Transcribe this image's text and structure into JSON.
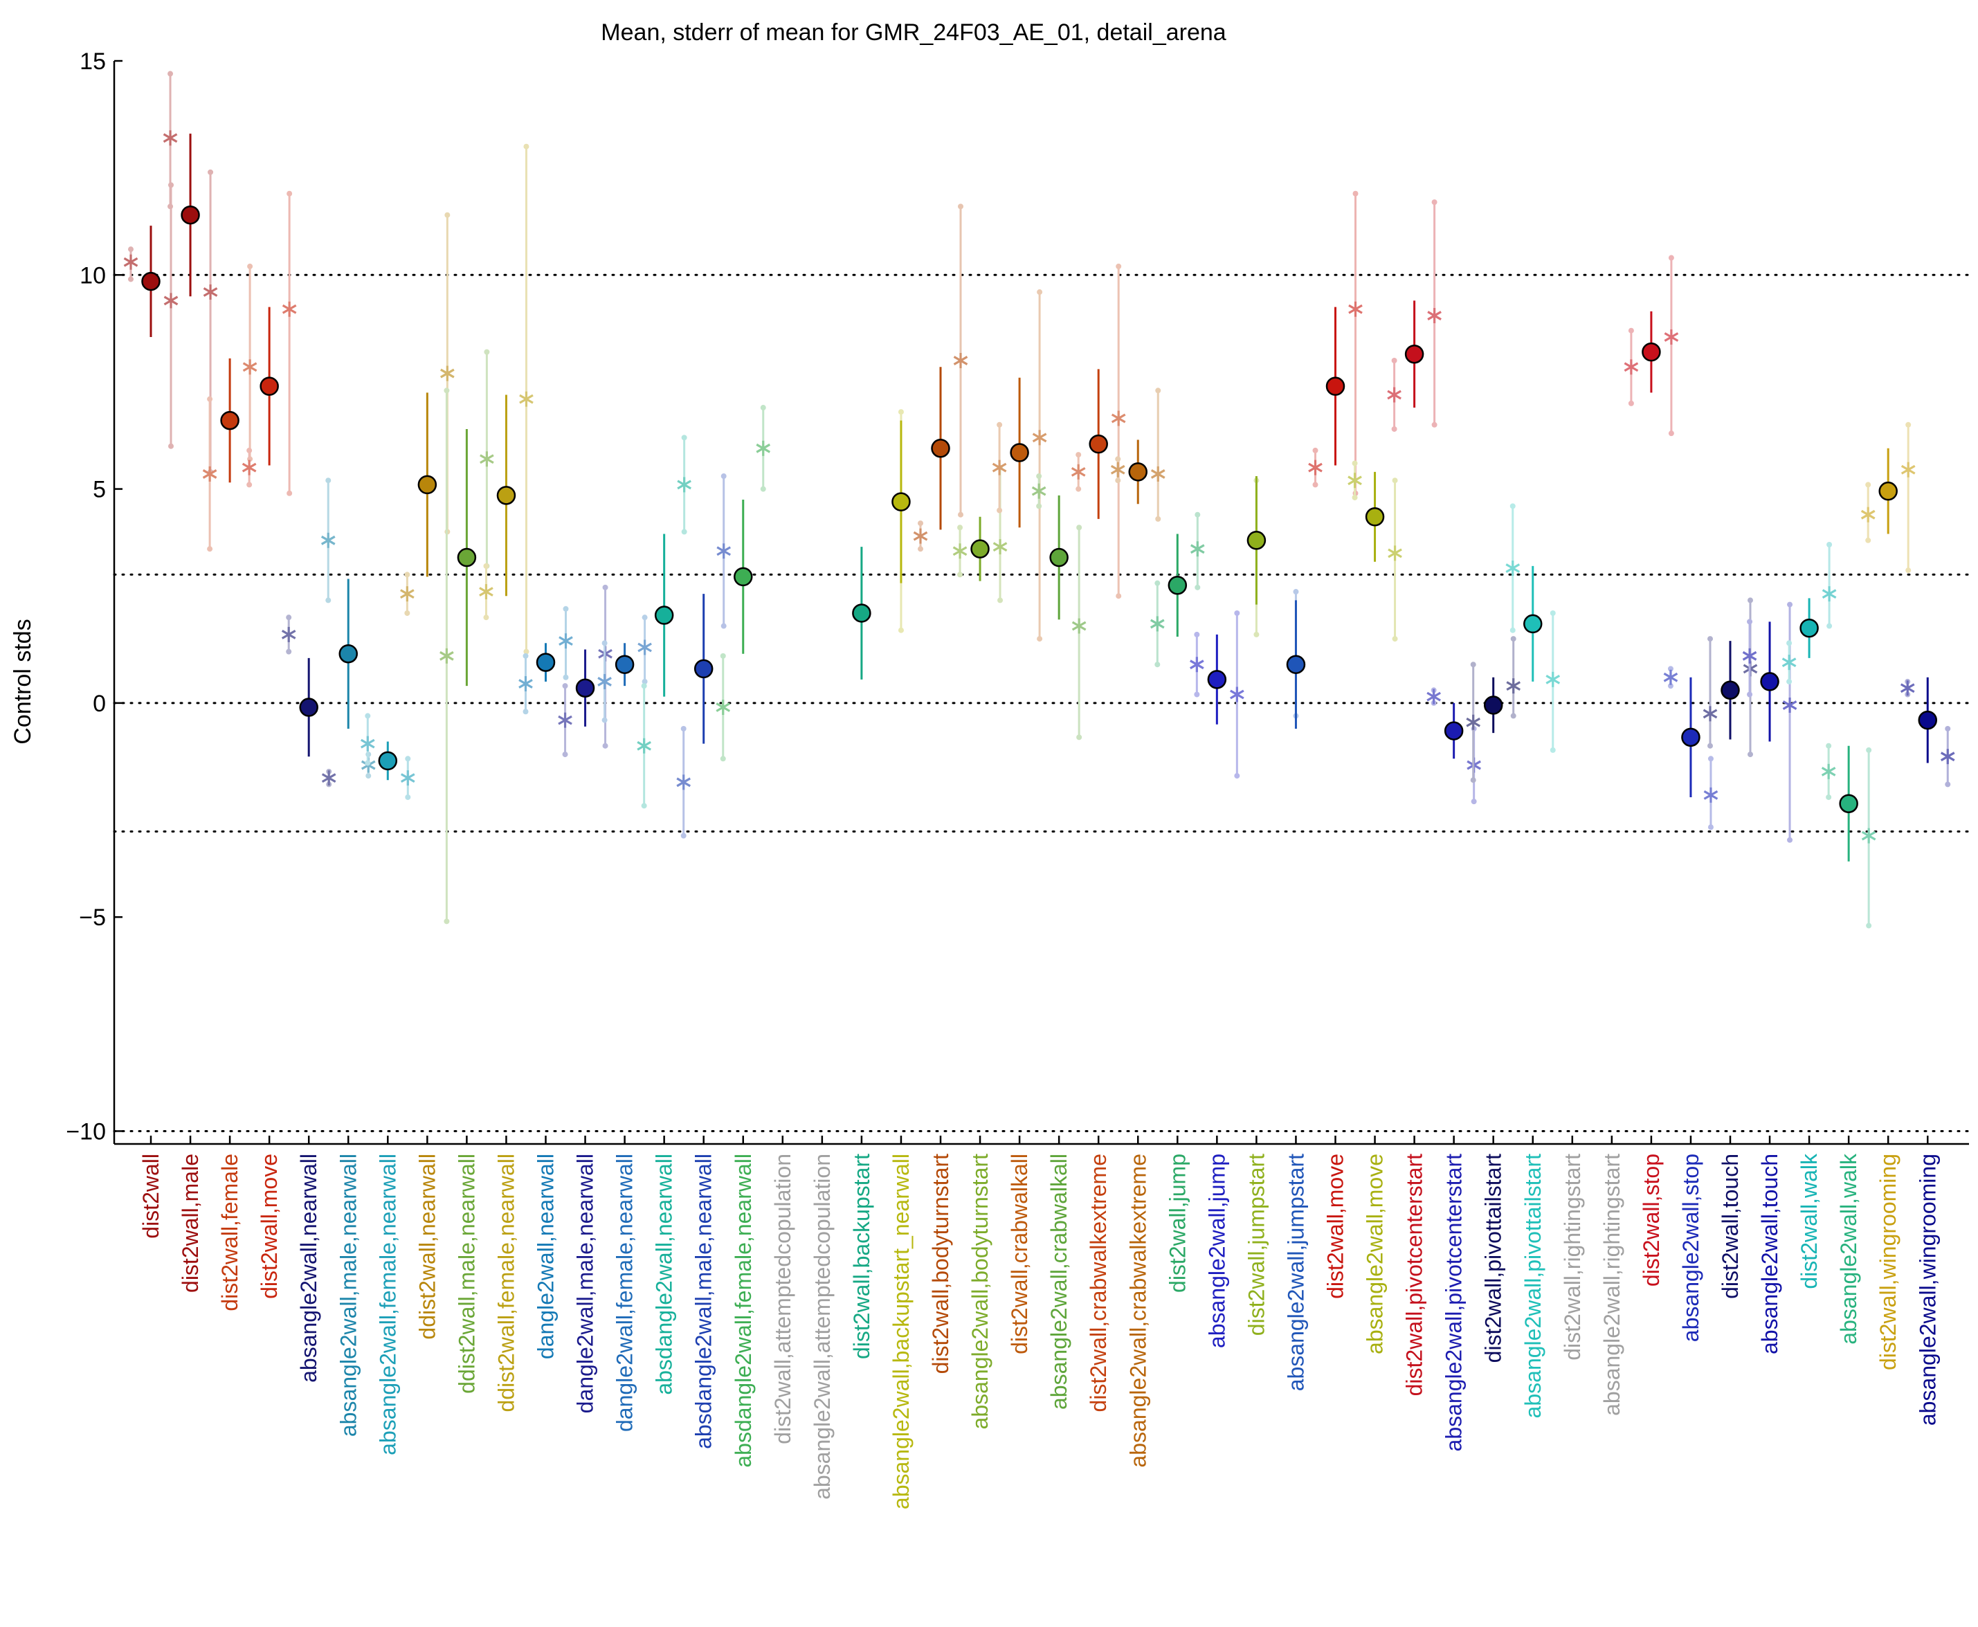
{
  "chart_data": {
    "type": "scatter",
    "title": "Mean, stderr of mean for GMR_24F03_AE_01, detail_arena",
    "ylabel": "Control stds",
    "xlabel": "",
    "ylim": [
      -10.3,
      15
    ],
    "yticks": [
      -10,
      -5,
      0,
      5,
      10,
      15
    ],
    "yticklabels": [
      "−10",
      "−5",
      "0",
      "5",
      "10",
      "15"
    ],
    "reference_lines": [
      -10,
      -3,
      0,
      3,
      10
    ],
    "grid": false,
    "categories": [
      {
        "label": "dist2wall",
        "color": "#9c0e0e",
        "mean": 9.85,
        "sem": 1.3,
        "sub": [
          {
            "v": 10.3,
            "lo": 9.9,
            "hi": 10.6
          },
          {
            "v": 9.4,
            "lo": 6.0,
            "hi": 12.1
          }
        ]
      },
      {
        "label": "dist2wall,male",
        "color": "#9c0e0e",
        "mean": 11.4,
        "sem": 1.9,
        "sub": [
          {
            "v": 13.2,
            "lo": 11.6,
            "hi": 14.7
          },
          {
            "v": 9.6,
            "lo": 5.4,
            "hi": 12.4
          }
        ]
      },
      {
        "label": "dist2wall,female",
        "color": "#c43a0e",
        "mean": 6.6,
        "sem": 1.45,
        "sub": [
          {
            "v": 5.35,
            "lo": 3.6,
            "hi": 7.1
          },
          {
            "v": 7.85,
            "lo": 5.7,
            "hi": 10.2
          }
        ]
      },
      {
        "label": "dist2wall,move",
        "color": "#c8250e",
        "mean": 7.4,
        "sem": 1.85,
        "sub": [
          {
            "v": 5.5,
            "lo": 5.1,
            "hi": 5.9
          },
          {
            "v": 9.2,
            "lo": 4.9,
            "hi": 11.9
          }
        ]
      },
      {
        "label": "absangle2wall,nearwall",
        "color": "#141470",
        "mean": -0.1,
        "sem": 1.15,
        "sub": [
          {
            "v": 1.6,
            "lo": 1.2,
            "hi": 2.0
          },
          {
            "v": -1.75,
            "lo": -1.9,
            "hi": -1.6
          }
        ]
      },
      {
        "label": "absangle2wall,male,nearwall",
        "color": "#1c85aa",
        "mean": 1.15,
        "sem": 1.75,
        "sub": [
          {
            "v": 3.8,
            "lo": 2.4,
            "hi": 5.2
          },
          {
            "v": -1.45,
            "lo": -1.7,
            "hi": -1.2
          }
        ]
      },
      {
        "label": "absangle2wall,female,nearwall",
        "color": "#1c9fb7",
        "mean": -1.35,
        "sem": 0.45,
        "sub": [
          {
            "v": -0.95,
            "lo": -1.4,
            "hi": -0.3
          },
          {
            "v": -1.75,
            "lo": -2.2,
            "hi": -1.3
          }
        ]
      },
      {
        "label": "ddist2wall,nearwall",
        "color": "#b8860b",
        "mean": 5.1,
        "sem": 2.15,
        "sub": [
          {
            "v": 2.55,
            "lo": 2.1,
            "hi": 3.0
          },
          {
            "v": 7.7,
            "lo": 4.0,
            "hi": 11.4
          }
        ]
      },
      {
        "label": "ddist2wall,male,nearwall",
        "color": "#6aa636",
        "mean": 3.4,
        "sem": 3.0,
        "sub": [
          {
            "v": 1.1,
            "lo": -5.1,
            "hi": 7.3
          },
          {
            "v": 5.7,
            "lo": 3.2,
            "hi": 8.2
          }
        ]
      },
      {
        "label": "ddist2wall,female,nearwall",
        "color": "#bba012",
        "mean": 4.85,
        "sem": 2.35,
        "sub": [
          {
            "v": 2.6,
            "lo": 2.0,
            "hi": 3.2
          },
          {
            "v": 7.1,
            "lo": 1.2,
            "hi": 13.0
          }
        ]
      },
      {
        "label": "dangle2wall,nearwall",
        "color": "#1479b5",
        "mean": 0.95,
        "sem": 0.45,
        "sub": [
          {
            "v": 0.45,
            "lo": -0.2,
            "hi": 1.1
          },
          {
            "v": 1.45,
            "lo": 0.6,
            "hi": 2.2
          }
        ]
      },
      {
        "label": "dangle2wall,male,nearwall",
        "color": "#1a1a8c",
        "mean": 0.35,
        "sem": 0.9,
        "sub": [
          {
            "v": -0.4,
            "lo": -1.2,
            "hi": 0.4
          },
          {
            "v": 1.15,
            "lo": -1.0,
            "hi": 2.7
          }
        ]
      },
      {
        "label": "dangle2wall,female,nearwall",
        "color": "#1f6bb8",
        "mean": 0.9,
        "sem": 0.5,
        "sub": [
          {
            "v": 0.5,
            "lo": -0.4,
            "hi": 1.4
          },
          {
            "v": 1.3,
            "lo": 0.5,
            "hi": 2.0
          }
        ]
      },
      {
        "label": "absdangle2wall,nearwall",
        "color": "#16b09a",
        "mean": 2.05,
        "sem": 1.9,
        "sub": [
          {
            "v": -1.0,
            "lo": -2.4,
            "hi": 0.4
          },
          {
            "v": 5.1,
            "lo": 4.0,
            "hi": 6.2
          }
        ]
      },
      {
        "label": "absdangle2wall,male,nearwall",
        "color": "#1d3fb0",
        "mean": 0.8,
        "sem": 1.75,
        "sub": [
          {
            "v": -1.85,
            "lo": -3.1,
            "hi": -0.6
          },
          {
            "v": 3.55,
            "lo": 1.8,
            "hi": 5.3
          }
        ]
      },
      {
        "label": "absdangle2wall,female,nearwall",
        "color": "#3dae53",
        "mean": 2.95,
        "sem": 1.8,
        "sub": [
          {
            "v": -0.1,
            "lo": -1.3,
            "hi": 1.1
          },
          {
            "v": 5.95,
            "lo": 5.0,
            "hi": 6.9
          }
        ]
      },
      {
        "label": "dist2wall,attemptedcopulation",
        "color": "#a0a0a0",
        "mean": null,
        "sem": null,
        "sub": []
      },
      {
        "label": "absangle2wall,attemptedcopulation",
        "color": "#a0a0a0",
        "mean": null,
        "sem": null,
        "sub": []
      },
      {
        "label": "dist2wall,backupstart",
        "color": "#16a884",
        "mean": 2.1,
        "sem": 1.55,
        "sub": []
      },
      {
        "label": "absangle2wall,backupstart_nearwall",
        "color": "#b7b80f",
        "mean": 4.7,
        "sem": 1.9,
        "sub": [
          {
            "v": 4.7,
            "lo": 1.7,
            "hi": 6.8
          }
        ]
      },
      {
        "label": "dist2wall,bodyturnstart",
        "color": "#b44a08",
        "mean": 5.95,
        "sem": 1.9,
        "sub": [
          {
            "v": 3.9,
            "lo": 3.6,
            "hi": 4.2
          },
          {
            "v": 8.0,
            "lo": 4.4,
            "hi": 11.6
          }
        ]
      },
      {
        "label": "absangle2wall,bodyturnstart",
        "color": "#7dab2a",
        "mean": 3.6,
        "sem": 0.75,
        "sub": [
          {
            "v": 3.55,
            "lo": 3.0,
            "hi": 4.1
          },
          {
            "v": 3.65,
            "lo": 2.4,
            "hi": 5.5
          }
        ]
      },
      {
        "label": "dist2wall,crabwalkall",
        "color": "#bd5a0c",
        "mean": 5.85,
        "sem": 1.75,
        "sub": [
          {
            "v": 5.5,
            "lo": 4.5,
            "hi": 6.5
          },
          {
            "v": 6.2,
            "lo": 1.5,
            "hi": 9.6
          }
        ]
      },
      {
        "label": "absangle2wall,crabwalkall",
        "color": "#5ea53a",
        "mean": 3.4,
        "sem": 1.45,
        "sub": [
          {
            "v": 4.95,
            "lo": 4.6,
            "hi": 5.3
          },
          {
            "v": 1.8,
            "lo": -0.8,
            "hi": 4.1
          }
        ]
      },
      {
        "label": "dist2wall,crabwalkextreme",
        "color": "#c4400e",
        "mean": 6.05,
        "sem": 1.75,
        "sub": [
          {
            "v": 5.4,
            "lo": 5.0,
            "hi": 5.8
          },
          {
            "v": 6.65,
            "lo": 2.5,
            "hi": 10.2
          }
        ]
      },
      {
        "label": "absangle2wall,crabwalkextreme",
        "color": "#b8650b",
        "mean": 5.4,
        "sem": 0.75,
        "sub": [
          {
            "v": 5.45,
            "lo": 5.2,
            "hi": 5.7
          },
          {
            "v": 5.35,
            "lo": 4.3,
            "hi": 7.3
          }
        ]
      },
      {
        "label": "dist2wall,jump",
        "color": "#2ba866",
        "mean": 2.75,
        "sem": 1.2,
        "sub": [
          {
            "v": 1.85,
            "lo": 0.9,
            "hi": 2.8
          },
          {
            "v": 3.6,
            "lo": 2.7,
            "hi": 4.4
          }
        ]
      },
      {
        "label": "absangle2wall,jump",
        "color": "#1e1ec0",
        "mean": 0.55,
        "sem": 1.05,
        "sub": [
          {
            "v": 0.9,
            "lo": 0.2,
            "hi": 1.6
          },
          {
            "v": 0.2,
            "lo": -1.7,
            "hi": 2.1
          }
        ]
      },
      {
        "label": "dist2wall,jumpstart",
        "color": "#8fb01c",
        "mean": 3.8,
        "sem": 1.5,
        "sub": [
          {
            "v": 3.8,
            "lo": 1.6,
            "hi": 5.2
          }
        ]
      },
      {
        "label": "absangle2wall,jumpstart",
        "color": "#1f55b8",
        "mean": 0.9,
        "sem": 1.5,
        "sub": [
          {
            "v": 0.9,
            "lo": -0.3,
            "hi": 2.6
          }
        ]
      },
      {
        "label": "dist2wall,move",
        "color": "#c8150e",
        "mean": 7.4,
        "sem": 1.85,
        "sub": [
          {
            "v": 5.5,
            "lo": 5.1,
            "hi": 5.9
          },
          {
            "v": 9.2,
            "lo": 4.9,
            "hi": 11.9
          }
        ]
      },
      {
        "label": "absangle2wall,move",
        "color": "#a8b010",
        "mean": 4.35,
        "sem": 1.05,
        "sub": [
          {
            "v": 5.2,
            "lo": 4.8,
            "hi": 5.6
          },
          {
            "v": 3.5,
            "lo": 1.5,
            "hi": 5.2
          }
        ]
      },
      {
        "label": "dist2wall,pivotcenterstart",
        "color": "#c4101c",
        "mean": 8.15,
        "sem": 1.25,
        "sub": [
          {
            "v": 7.2,
            "lo": 6.4,
            "hi": 8.0
          },
          {
            "v": 9.05,
            "lo": 6.5,
            "hi": 11.7
          }
        ]
      },
      {
        "label": "absangle2wall,pivotcenterstart",
        "color": "#1c1cb0",
        "mean": -0.65,
        "sem": 0.65,
        "sub": [
          {
            "v": 0.15,
            "lo": 0.0,
            "hi": 0.3
          },
          {
            "v": -1.45,
            "lo": -2.3,
            "hi": -0.6
          }
        ]
      },
      {
        "label": "dist2wall,pivottailstart",
        "color": "#0c0c5c",
        "mean": -0.05,
        "sem": 0.65,
        "sub": [
          {
            "v": -0.45,
            "lo": -1.8,
            "hi": 0.9
          },
          {
            "v": 0.4,
            "lo": -0.3,
            "hi": 1.5
          }
        ]
      },
      {
        "label": "absangle2wall,pivottailstart",
        "color": "#1fbfb8",
        "mean": 1.85,
        "sem": 1.35,
        "sub": [
          {
            "v": 3.15,
            "lo": 1.7,
            "hi": 4.6
          },
          {
            "v": 0.55,
            "lo": -1.1,
            "hi": 2.1
          }
        ]
      },
      {
        "label": "dist2wall,rightingstart",
        "color": "#a0a0a0",
        "mean": null,
        "sem": null,
        "sub": []
      },
      {
        "label": "absangle2wall,rightingstart",
        "color": "#a0a0a0",
        "mean": null,
        "sem": null,
        "sub": []
      },
      {
        "label": "dist2wall,stop",
        "color": "#c8101c",
        "mean": 8.2,
        "sem": 0.95,
        "sub": [
          {
            "v": 7.85,
            "lo": 7.0,
            "hi": 8.7
          },
          {
            "v": 8.55,
            "lo": 6.3,
            "hi": 10.4
          }
        ]
      },
      {
        "label": "absangle2wall,stop",
        "color": "#1c2ab8",
        "mean": -0.8,
        "sem": 1.4,
        "sub": [
          {
            "v": 0.6,
            "lo": 0.4,
            "hi": 0.8
          },
          {
            "v": -2.15,
            "lo": -2.9,
            "hi": -1.3
          }
        ]
      },
      {
        "label": "dist2wall,touch",
        "color": "#0e0e66",
        "mean": 0.3,
        "sem": 1.15,
        "sub": [
          {
            "v": -0.25,
            "lo": -1.0,
            "hi": 1.5
          },
          {
            "v": 0.8,
            "lo": -1.2,
            "hi": 2.4
          }
        ]
      },
      {
        "label": "absangle2wall,touch",
        "color": "#1212a8",
        "mean": 0.5,
        "sem": 1.4,
        "sub": [
          {
            "v": 1.1,
            "lo": 0.2,
            "hi": 1.9
          },
          {
            "v": -0.05,
            "lo": -3.2,
            "hi": 2.3
          }
        ]
      },
      {
        "label": "dist2wall,walk",
        "color": "#17b4b4",
        "mean": 1.75,
        "sem": 0.7,
        "sub": [
          {
            "v": 0.95,
            "lo": 0.5,
            "hi": 1.4
          },
          {
            "v": 2.55,
            "lo": 1.8,
            "hi": 3.7
          }
        ]
      },
      {
        "label": "absangle2wall,walk",
        "color": "#27b27e",
        "mean": -2.35,
        "sem": 1.35,
        "sub": [
          {
            "v": -1.6,
            "lo": -2.2,
            "hi": -1.0
          },
          {
            "v": -3.1,
            "lo": -5.2,
            "hi": -1.1
          }
        ]
      },
      {
        "label": "dist2wall,wingrooming",
        "color": "#c8a010",
        "mean": 4.95,
        "sem": 1.0,
        "sub": [
          {
            "v": 4.4,
            "lo": 3.8,
            "hi": 5.1
          },
          {
            "v": 5.45,
            "lo": 3.1,
            "hi": 6.5
          }
        ]
      },
      {
        "label": "absangle2wall,wingrooming",
        "color": "#0a0a8c",
        "mean": -0.4,
        "sem": 1.0,
        "sub": [
          {
            "v": 0.35,
            "lo": 0.2,
            "hi": 0.5
          },
          {
            "v": -1.25,
            "lo": -1.9,
            "hi": -0.6
          }
        ]
      }
    ]
  }
}
